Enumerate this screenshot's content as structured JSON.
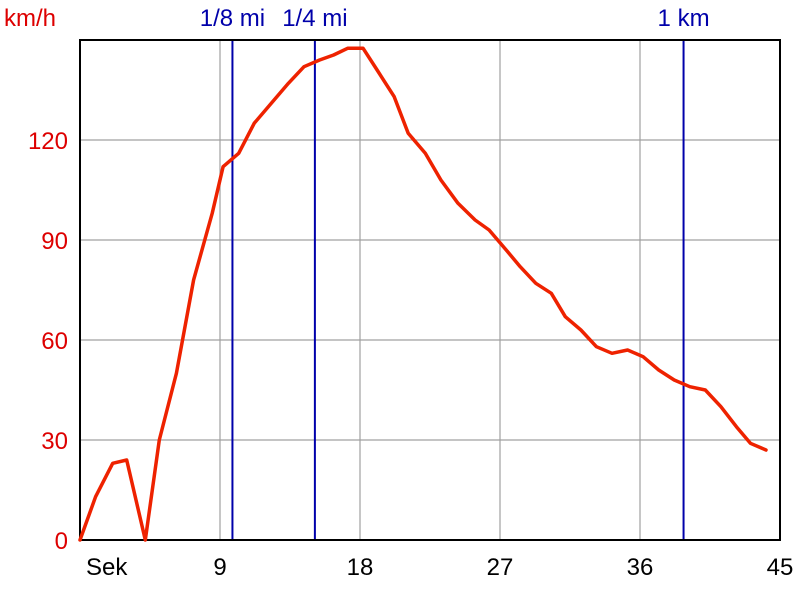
{
  "chart_data": {
    "type": "line",
    "ylabel": "km/h",
    "xlabel": "Sek",
    "xlim": [
      0,
      45
    ],
    "ylim": [
      0,
      150
    ],
    "x_ticks": [
      9,
      18,
      27,
      36,
      45
    ],
    "x_tick_labels": [
      "9",
      "18",
      "27",
      "36",
      "45"
    ],
    "y_ticks": [
      0,
      30,
      60,
      90,
      120
    ],
    "y_tick_labels": [
      "0",
      "30",
      "60",
      "90",
      "120"
    ],
    "grid": true,
    "series_color": "#ee2200",
    "axis_label_color": "#dd0000",
    "marker_color": "#0000aa",
    "distance_markers": [
      {
        "label": "1/8 mi",
        "x": 9.8
      },
      {
        "label": "1/4 mi",
        "x": 15.1
      },
      {
        "label": "1 km",
        "x": 38.8
      }
    ],
    "series": [
      {
        "x": [
          0,
          1.0,
          2.1,
          3.0,
          4.2,
          5.1,
          6.2,
          7.3,
          8.5,
          9.2,
          10.2,
          11.2,
          12.3,
          13.4,
          14.4,
          15.4,
          16.3,
          17.2,
          18.2,
          19.1,
          20.2,
          21.1,
          22.2,
          23.2,
          24.3,
          25.4,
          26.3,
          27.4,
          28.3,
          29.3,
          30.3,
          31.2,
          32.2,
          33.2,
          34.2,
          35.2,
          36.2,
          37.2,
          38.2,
          39.2,
          40.2,
          41.2,
          42.2,
          43.1,
          44.1
        ],
        "y": [
          0,
          13,
          23,
          24,
          0,
          30,
          50,
          78,
          98,
          112,
          116,
          125,
          131,
          137,
          142,
          144,
          145.5,
          147.5,
          147.5,
          141,
          133,
          122,
          116,
          108,
          101,
          96,
          93,
          87,
          82,
          77,
          74,
          67,
          63,
          58,
          56,
          57,
          55,
          51,
          48,
          46,
          45,
          40,
          34,
          29,
          27
        ]
      }
    ]
  }
}
